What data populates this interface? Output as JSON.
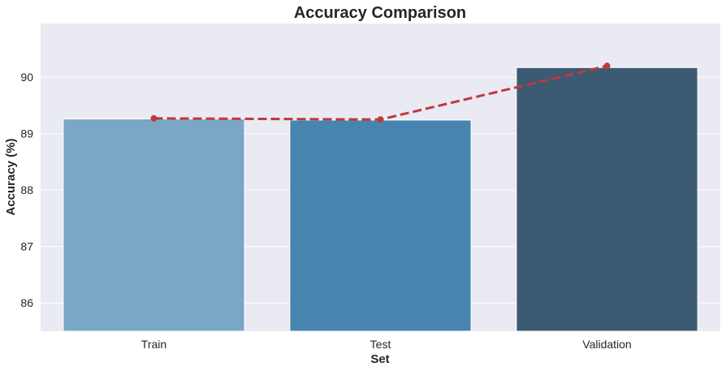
{
  "chart_data": {
    "type": "bar",
    "title": "Accuracy Comparison",
    "xlabel": "Set",
    "ylabel": "Accuracy (%)",
    "categories": [
      "Train",
      "Test",
      "Validation"
    ],
    "values": [
      89.26,
      89.24,
      90.17
    ],
    "bar_colors": [
      "#7ba7c7",
      "#4784b0",
      "#3d5a73"
    ],
    "line_overlay": {
      "values": [
        89.27,
        89.25,
        90.2
      ],
      "color": "#c0393b",
      "style": "dashed",
      "markers": "circle"
    },
    "ylim": [
      85.5,
      90.95
    ],
    "yticks": [
      86,
      87,
      88,
      89,
      90
    ],
    "grid": true,
    "background": "#eaeaf2",
    "grid_color": "#ffffff"
  }
}
